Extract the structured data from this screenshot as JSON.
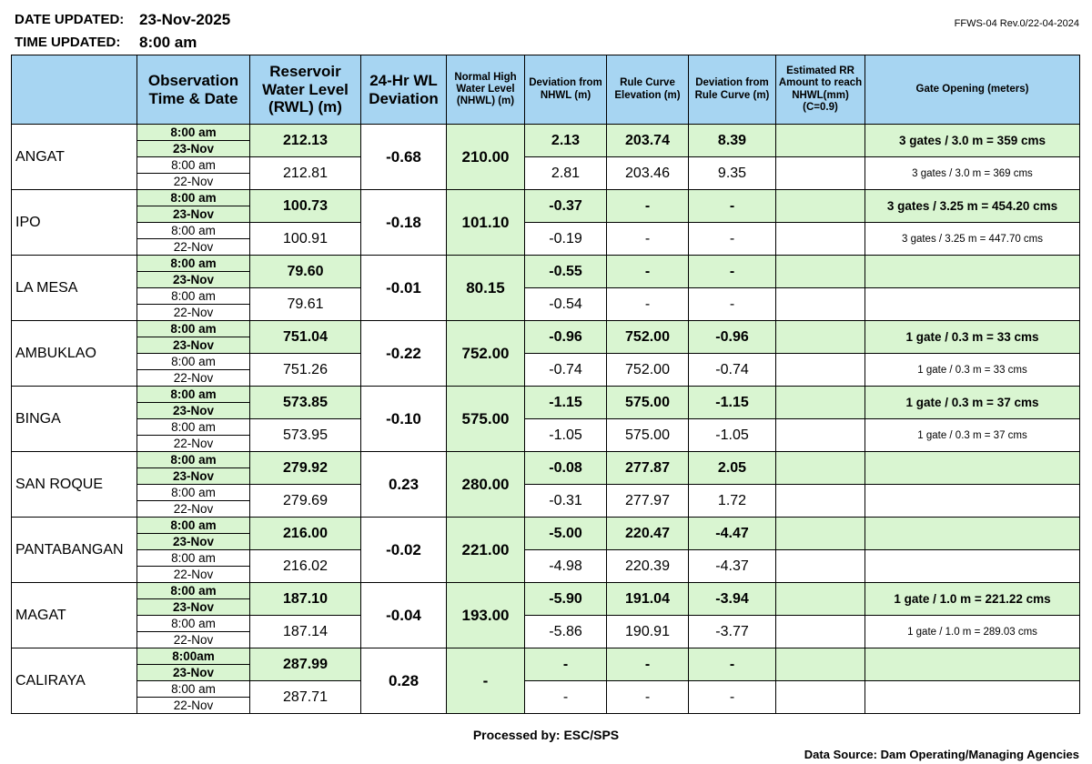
{
  "header": {
    "date_label": "DATE UPDATED:",
    "date": "23-Nov-2025",
    "time_label": "TIME UPDATED:",
    "time": "8:00 am",
    "form_code": "FFWS-04 Rev.0/22-04-2024"
  },
  "table": {
    "columns": [
      "Observation Time & Date",
      "Reservoir Water Level (RWL) (m)",
      "24-Hr WL Deviation",
      "Normal High Water Level (NHWL) (m)",
      "Deviation from NHWL (m)",
      "Rule Curve Elevation (m)",
      "Deviation from Rule Curve (m)",
      "Estimated RR Amount to reach NHWL(mm) (C=0.9)",
      "Gate Opening (meters)"
    ],
    "dams": [
      {
        "name": "ANGAT",
        "deviation_24h": "-0.68",
        "nhwl": "210.00",
        "readings": [
          {
            "time": "8:00 am",
            "date": "23-Nov",
            "rwl": "212.13",
            "dev_nhwl": "2.13",
            "rule_curve": "203.74",
            "dev_rule_curve": "8.39",
            "gate_opening": "3 gates / 3.0 m = 359 cms"
          },
          {
            "time": "8:00 am",
            "date": "22-Nov",
            "rwl": "212.81",
            "dev_nhwl": "2.81",
            "rule_curve": "203.46",
            "dev_rule_curve": "9.35",
            "gate_opening": "3 gates / 3.0 m = 369 cms"
          }
        ]
      },
      {
        "name": "IPO",
        "deviation_24h": "-0.18",
        "nhwl": "101.10",
        "readings": [
          {
            "time": "8:00 am",
            "date": "23-Nov",
            "rwl": "100.73",
            "dev_nhwl": "-0.37",
            "rule_curve": "-",
            "dev_rule_curve": "-",
            "gate_opening": "3 gates / 3.25 m = 454.20 cms"
          },
          {
            "time": "8:00 am",
            "date": "22-Nov",
            "rwl": "100.91",
            "dev_nhwl": "-0.19",
            "rule_curve": "-",
            "dev_rule_curve": "-",
            "gate_opening": "3 gates / 3.25 m = 447.70 cms"
          }
        ]
      },
      {
        "name": "LA MESA",
        "deviation_24h": "-0.01",
        "nhwl": "80.15",
        "readings": [
          {
            "time": "8:00 am",
            "date": "23-Nov",
            "rwl": "79.60",
            "dev_nhwl": "-0.55",
            "rule_curve": "-",
            "dev_rule_curve": "-"
          },
          {
            "time": "8:00 am",
            "date": "22-Nov",
            "rwl": "79.61",
            "dev_nhwl": "-0.54",
            "rule_curve": "-",
            "dev_rule_curve": "-"
          }
        ]
      },
      {
        "name": "AMBUKLAO",
        "deviation_24h": "-0.22",
        "nhwl": "752.00",
        "readings": [
          {
            "time": "8:00 am",
            "date": "23-Nov",
            "rwl": "751.04",
            "dev_nhwl": "-0.96",
            "rule_curve": "752.00",
            "dev_rule_curve": "-0.96",
            "gate_opening": "1 gate / 0.3 m = 33 cms"
          },
          {
            "time": "8:00 am",
            "date": "22-Nov",
            "rwl": "751.26",
            "dev_nhwl": "-0.74",
            "rule_curve": "752.00",
            "dev_rule_curve": "-0.74",
            "gate_opening": "1 gate / 0.3 m = 33 cms"
          }
        ]
      },
      {
        "name": "BINGA",
        "deviation_24h": "-0.10",
        "nhwl": "575.00",
        "readings": [
          {
            "time": "8:00 am",
            "date": "23-Nov",
            "rwl": "573.85",
            "dev_nhwl": "-1.15",
            "rule_curve": "575.00",
            "dev_rule_curve": "-1.15",
            "gate_opening": "1 gate / 0.3 m = 37 cms"
          },
          {
            "time": "8:00 am",
            "date": "22-Nov",
            "rwl": "573.95",
            "dev_nhwl": "-1.05",
            "rule_curve": "575.00",
            "dev_rule_curve": "-1.05",
            "gate_opening": "1 gate / 0.3 m = 37 cms"
          }
        ]
      },
      {
        "name": "SAN ROQUE",
        "deviation_24h": "0.23",
        "nhwl": "280.00",
        "readings": [
          {
            "time": "8:00 am",
            "date": "23-Nov",
            "rwl": "279.92",
            "dev_nhwl": "-0.08",
            "rule_curve": "277.87",
            "dev_rule_curve": "2.05"
          },
          {
            "time": "8:00 am",
            "date": "22-Nov",
            "rwl": "279.69",
            "dev_nhwl": "-0.31",
            "rule_curve": "277.97",
            "dev_rule_curve": "1.72"
          }
        ]
      },
      {
        "name": "PANTABANGAN",
        "deviation_24h": "-0.02",
        "nhwl": "221.00",
        "readings": [
          {
            "time": "8:00 am",
            "date": "23-Nov",
            "rwl": "216.00",
            "dev_nhwl": "-5.00",
            "rule_curve": "220.47",
            "dev_rule_curve": "-4.47"
          },
          {
            "time": "8:00 am",
            "date": "22-Nov",
            "rwl": "216.02",
            "dev_nhwl": "-4.98",
            "rule_curve": "220.39",
            "dev_rule_curve": "-4.37"
          }
        ]
      },
      {
        "name": "MAGAT",
        "deviation_24h": "-0.04",
        "nhwl": "193.00",
        "readings": [
          {
            "time": "8:00 am",
            "date": "23-Nov",
            "rwl": "187.10",
            "dev_nhwl": "-5.90",
            "rule_curve": "191.04",
            "dev_rule_curve": "-3.94",
            "gate_opening": "1 gate / 1.0 m = 221.22 cms"
          },
          {
            "time": "8:00 am",
            "date": "22-Nov",
            "rwl": "187.14",
            "dev_nhwl": "-5.86",
            "rule_curve": "190.91",
            "dev_rule_curve": "-3.77",
            "gate_opening": "1 gate / 1.0 m = 289.03 cms"
          }
        ]
      },
      {
        "name": "CALIRAYA",
        "deviation_24h": "0.28",
        "nhwl": "-",
        "readings": [
          {
            "time": "8:00am",
            "date": "23-Nov",
            "rwl": "287.99",
            "dev_nhwl": "-",
            "rule_curve": "-",
            "dev_rule_curve": "-"
          },
          {
            "time": "8:00 am",
            "date": "22-Nov",
            "rwl": "287.71",
            "dev_nhwl": "-",
            "rule_curve": "-",
            "dev_rule_curve": "-"
          }
        ]
      }
    ]
  },
  "footer": {
    "processed_by": "Processed by: ESC/SPS",
    "data_source": "Data Source: Dam Operating/Managing Agencies"
  }
}
